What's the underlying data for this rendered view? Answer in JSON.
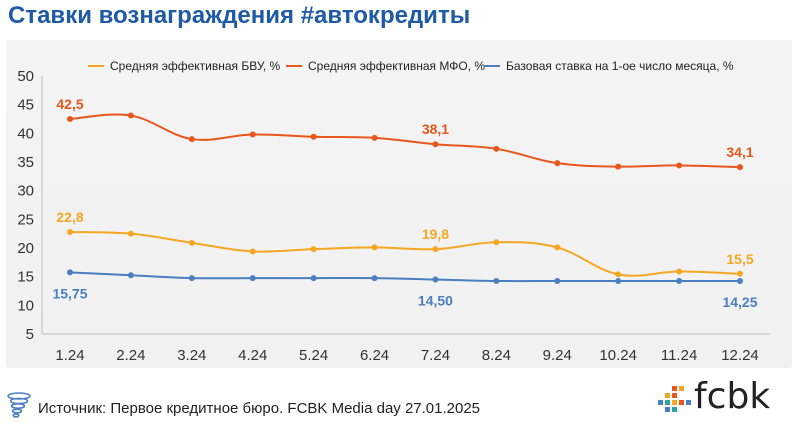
{
  "title": "Ставки вознаграждения #автокредиты",
  "footer": {
    "source": "Источник: Первое кредитное бюро. FCBK Media day 27.01.2025",
    "brand": "fcbk"
  },
  "chart_data": {
    "type": "line",
    "categories": [
      "1.24",
      "2.24",
      "3.24",
      "4.24",
      "5.24",
      "6.24",
      "7.24",
      "8.24",
      "9.24",
      "10.24",
      "11.24",
      "12.24"
    ],
    "ylim": [
      5,
      50
    ],
    "yticks": [
      "5",
      "10",
      "15",
      "20",
      "25",
      "30",
      "35",
      "40",
      "45",
      "50"
    ],
    "grid": false,
    "legend_position": "top",
    "series": [
      {
        "name": "Средняя эффективная БВУ, %",
        "color": "#f5a623",
        "values": [
          22.8,
          22.5,
          20.9,
          19.4,
          19.8,
          20.1,
          19.8,
          21.0,
          20.1,
          15.4,
          15.9,
          15.5
        ],
        "labels": [
          {
            "index": 0,
            "text": "22,8"
          },
          {
            "index": 6,
            "text": "19,8"
          },
          {
            "index": 11,
            "text": "15,5"
          }
        ]
      },
      {
        "name": "Средняя эффективная МФО, %",
        "color": "#e8561c",
        "values": [
          42.5,
          43.1,
          39.0,
          39.8,
          39.4,
          39.2,
          38.1,
          37.3,
          34.8,
          34.2,
          34.4,
          34.1
        ],
        "labels": [
          {
            "index": 0,
            "text": "42,5"
          },
          {
            "index": 6,
            "text": "38,1"
          },
          {
            "index": 11,
            "text": "34,1"
          }
        ]
      },
      {
        "name": "Базовая ставка на 1-ое число месяца, %",
        "color": "#4a7fc1",
        "values": [
          15.75,
          15.25,
          14.75,
          14.75,
          14.75,
          14.75,
          14.5,
          14.25,
          14.25,
          14.25,
          14.25,
          14.25
        ],
        "labels": [
          {
            "index": 0,
            "text": "15,75"
          },
          {
            "index": 6,
            "text": "14,50"
          },
          {
            "index": 11,
            "text": "14,25"
          }
        ]
      }
    ]
  }
}
